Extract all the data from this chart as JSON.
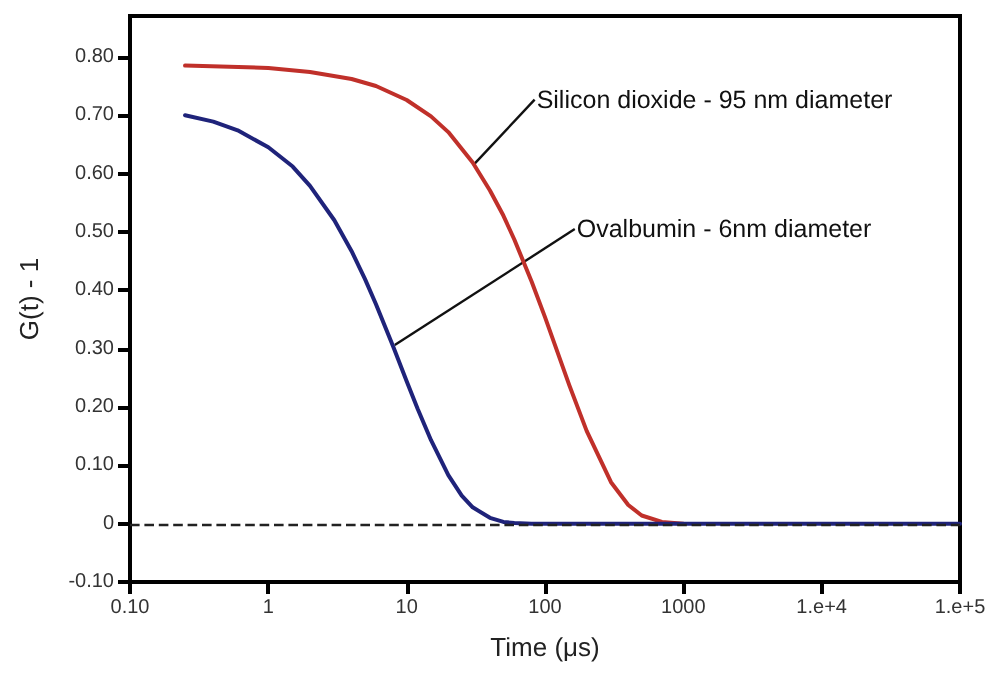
{
  "chart_data": {
    "type": "line",
    "xlabel": "Time (μs)",
    "ylabel": "G(t) - 1",
    "log": "x",
    "grid": false,
    "marker": "none",
    "line_style": "solid",
    "xlim": [
      0.1,
      100000
    ],
    "xticks": [
      {
        "value": 0.1,
        "label": "0.10"
      },
      1,
      10,
      100,
      1000,
      {
        "value": 10000,
        "label": "1.e+4"
      },
      {
        "value": 100000,
        "label": "1.e+5"
      }
    ],
    "ylim": [
      -0.1,
      0.87
    ],
    "yticks": [
      {
        "value": -0.1,
        "label": "-0.10"
      },
      0,
      {
        "value": 0.1,
        "label": "0.10"
      },
      {
        "value": 0.2,
        "label": "0.20"
      },
      {
        "value": 0.3,
        "label": "0.30"
      },
      {
        "value": 0.4,
        "label": "0.40"
      },
      {
        "value": 0.5,
        "label": "0.50"
      },
      {
        "value": 0.6,
        "label": "0.60"
      },
      {
        "value": 0.7,
        "label": "0.70"
      },
      {
        "value": 0.8,
        "label": "0.80"
      }
    ],
    "series": [
      {
        "color": "#c0302a",
        "x": [
          0.25,
          1,
          2,
          4,
          6,
          10,
          15,
          20,
          30,
          40,
          50,
          60,
          80,
          100,
          150,
          200,
          300,
          400,
          500,
          700,
          1000
        ],
        "values": [
          0.785,
          0.781,
          0.774,
          0.762,
          0.75,
          0.726,
          0.698,
          0.671,
          0.619,
          0.571,
          0.528,
          0.487,
          0.415,
          0.354,
          0.237,
          0.159,
          0.071,
          0.032,
          0.014,
          0.003,
          0
        ]
      },
      {
        "color": "#1f237a",
        "x": [
          0.25,
          0.4,
          0.6,
          1,
          1.5,
          2,
          3,
          4,
          5,
          6,
          8,
          10,
          12,
          15,
          20,
          25,
          30,
          40,
          50,
          60,
          80,
          1000,
          10000,
          100000
        ],
        "values": [
          0.7,
          0.689,
          0.674,
          0.645,
          0.612,
          0.579,
          0.52,
          0.467,
          0.419,
          0.376,
          0.303,
          0.244,
          0.197,
          0.143,
          0.083,
          0.048,
          0.028,
          0.01,
          0.003,
          0.001,
          0,
          0,
          0,
          0
        ]
      }
    ],
    "ref_lines": [
      {
        "axis": "y",
        "value": 0,
        "label": null,
        "color": "#222222",
        "line_style": "dashed"
      }
    ],
    "annotations": [
      {
        "text": "Silicon dioxide - 95 nm diameter",
        "x": 31,
        "y": 0.617
      },
      {
        "text": "Ovalbumin - 6nm diameter",
        "x": 8.2,
        "y": 0.306
      }
    ]
  }
}
